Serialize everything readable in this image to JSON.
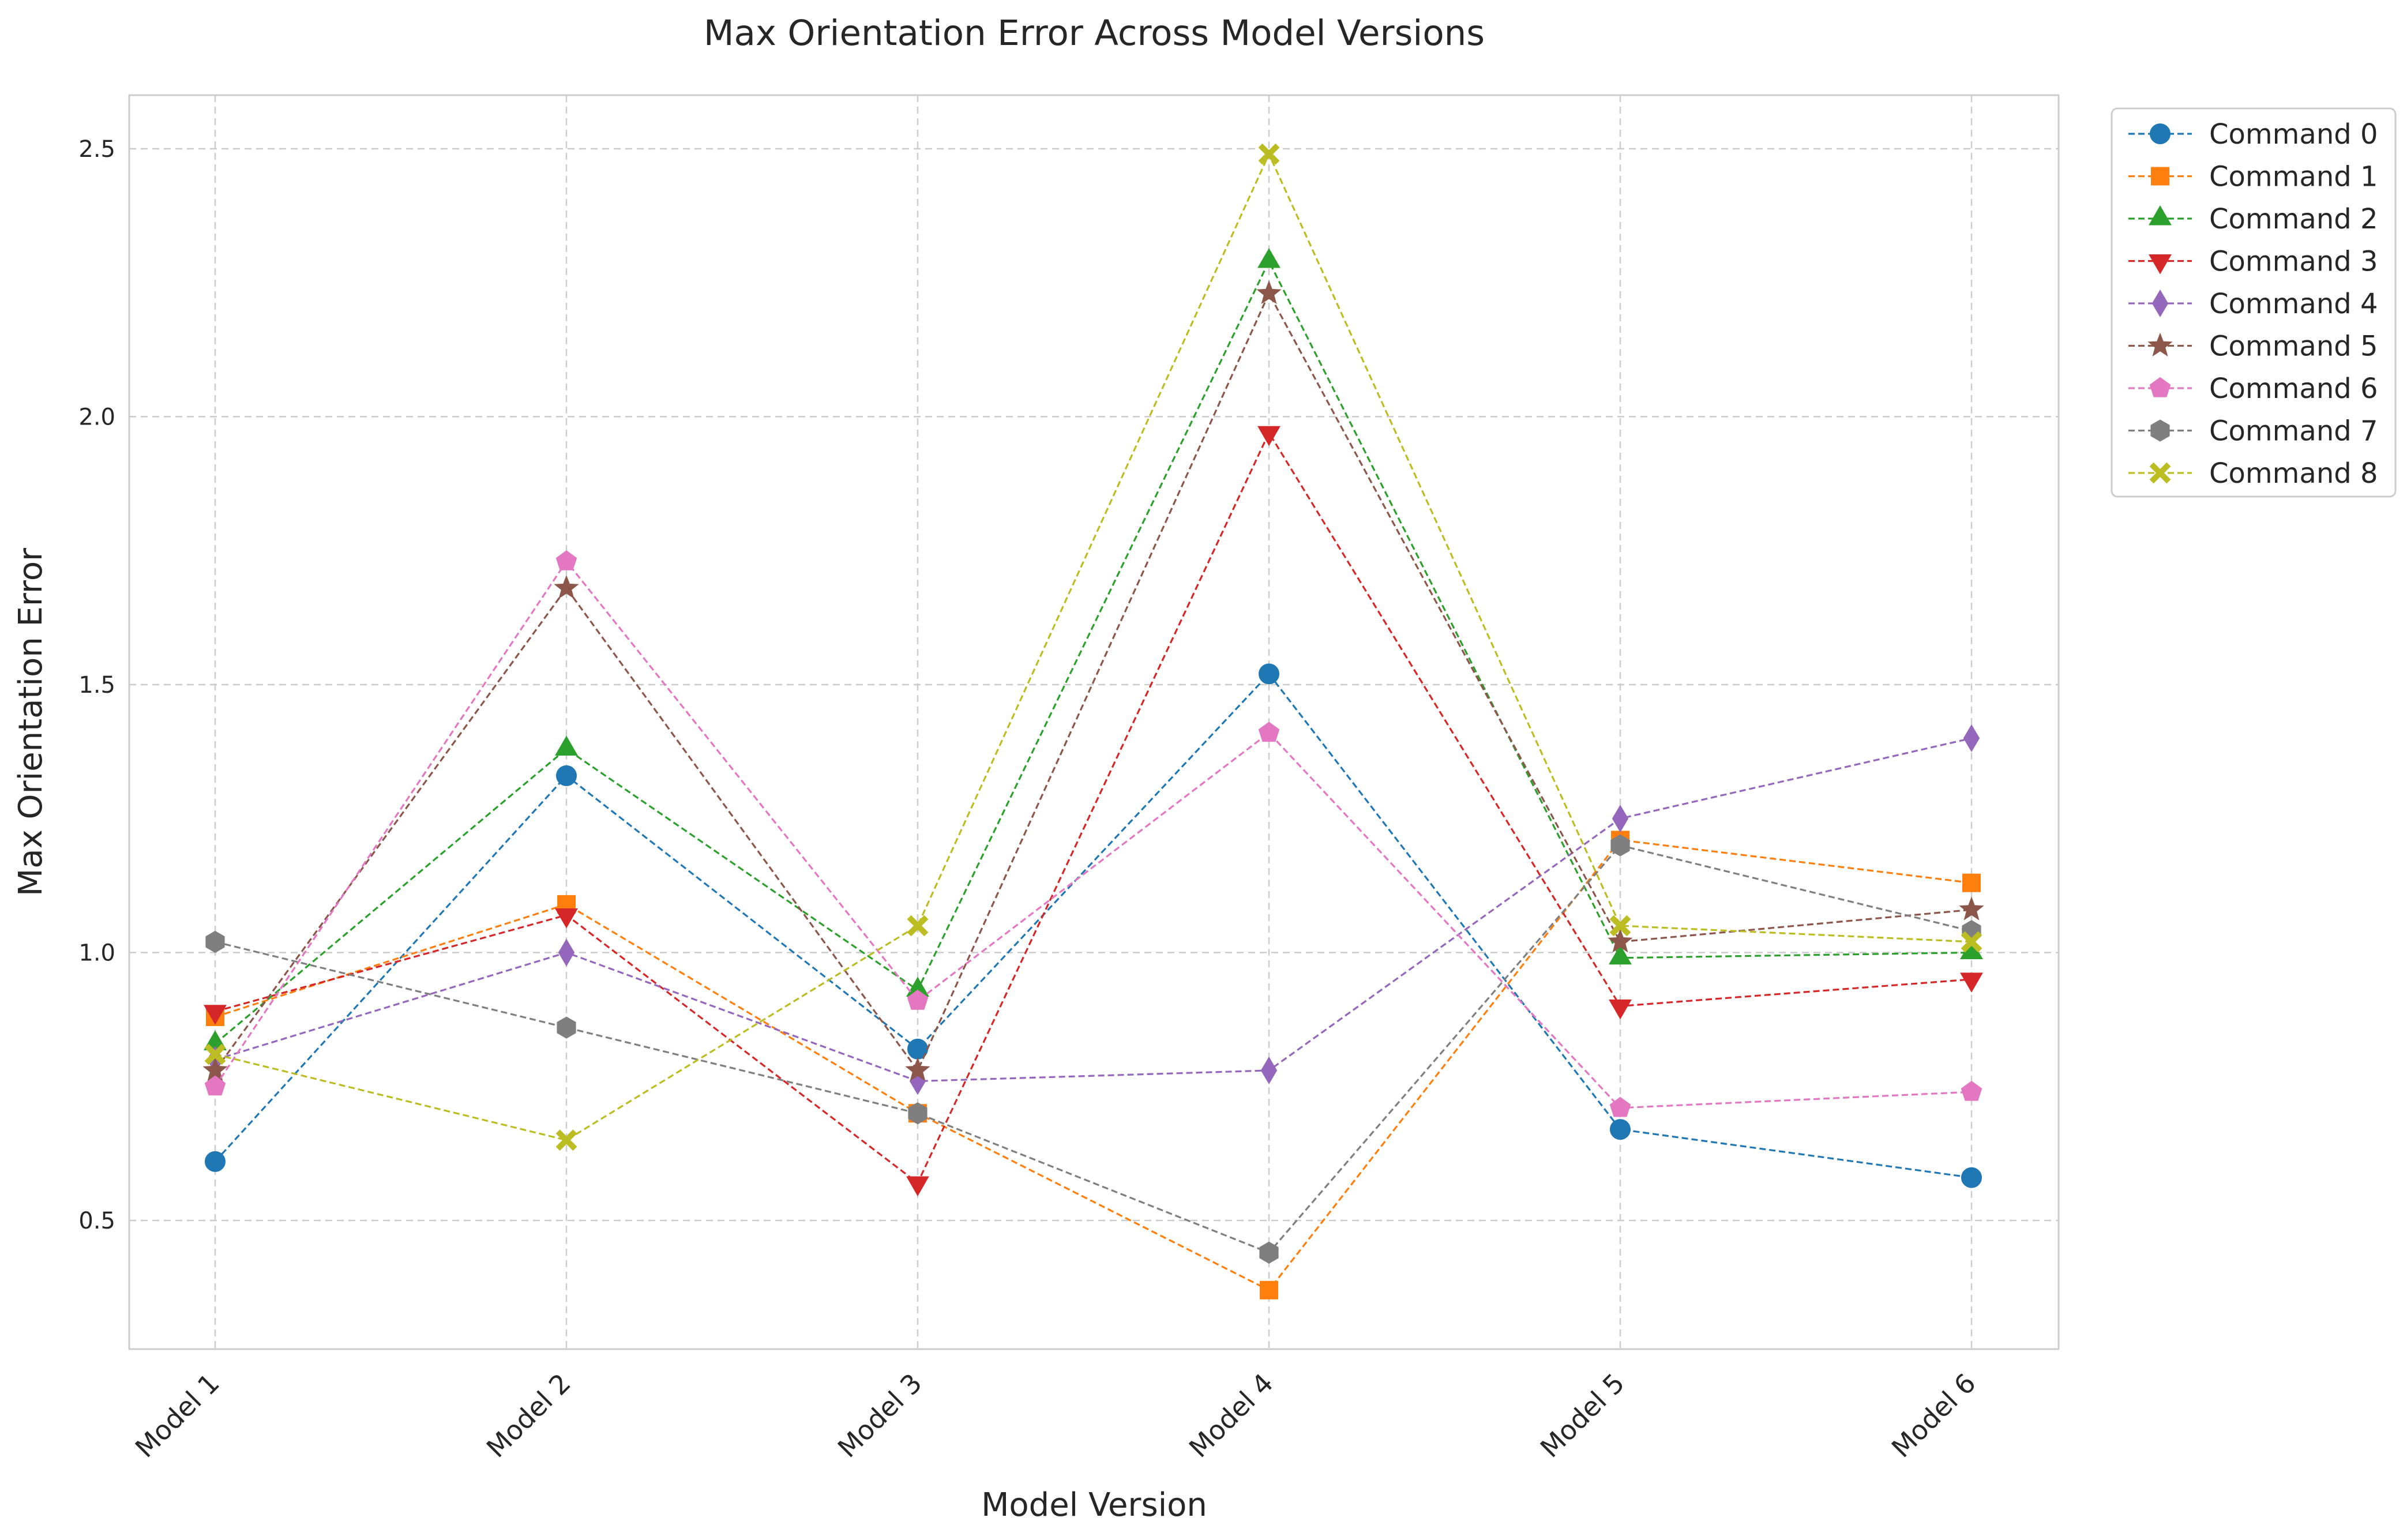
{
  "chart_data": {
    "type": "line",
    "title": "Max Orientation Error Across Model Versions",
    "xlabel": "Model Version",
    "ylabel": "Max Orientation Error",
    "categories": [
      "Model 1",
      "Model 2",
      "Model 3",
      "Model 4",
      "Model 5",
      "Model 6"
    ],
    "ylim": [
      0.26,
      2.6
    ],
    "yticks": [
      0.5,
      1.0,
      1.5,
      2.0,
      2.5
    ],
    "ytick_labels": [
      "0.5",
      "1.0",
      "1.5",
      "2.0",
      "2.5"
    ],
    "grid": true,
    "legend_position": "outside top-right",
    "series": [
      {
        "name": "Command 0",
        "values": [
          0.61,
          1.33,
          0.82,
          1.52,
          0.67,
          0.58
        ],
        "color": "#1f77b4",
        "marker": "circle"
      },
      {
        "name": "Command 1",
        "values": [
          0.88,
          1.09,
          0.7,
          0.37,
          1.21,
          1.13
        ],
        "color": "#ff7f0e",
        "marker": "square"
      },
      {
        "name": "Command 2",
        "values": [
          0.83,
          1.38,
          0.93,
          2.29,
          0.99,
          1.0
        ],
        "color": "#2ca02c",
        "marker": "triangle-up"
      },
      {
        "name": "Command 3",
        "values": [
          0.89,
          1.07,
          0.57,
          1.97,
          0.9,
          0.95
        ],
        "color": "#d62728",
        "marker": "triangle-down"
      },
      {
        "name": "Command 4",
        "values": [
          0.8,
          1.0,
          0.76,
          0.78,
          1.25,
          1.4
        ],
        "color": "#9467bd",
        "marker": "diamond"
      },
      {
        "name": "Command 5",
        "values": [
          0.78,
          1.68,
          0.78,
          2.23,
          1.02,
          1.08
        ],
        "color": "#8c564b",
        "marker": "star"
      },
      {
        "name": "Command 6",
        "values": [
          0.75,
          1.73,
          0.91,
          1.41,
          0.71,
          0.74
        ],
        "color": "#e377c2",
        "marker": "pentagon"
      },
      {
        "name": "Command 7",
        "values": [
          1.02,
          0.86,
          0.7,
          0.44,
          1.2,
          1.04
        ],
        "color": "#7f7f7f",
        "marker": "hexagon"
      },
      {
        "name": "Command 8",
        "values": [
          0.81,
          0.65,
          1.05,
          2.49,
          1.05,
          1.02
        ],
        "color": "#bcbd22",
        "marker": "x-filled"
      }
    ]
  }
}
